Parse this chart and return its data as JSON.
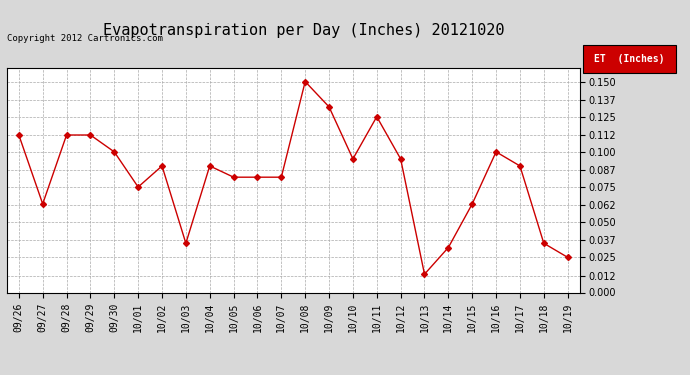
{
  "title": "Evapotranspiration per Day (Inches) 20121020",
  "copyright": "Copyright 2012 Cartronics.com",
  "legend_label": "ET  (Inches)",
  "x_labels": [
    "09/26",
    "09/27",
    "09/28",
    "09/29",
    "09/30",
    "10/01",
    "10/02",
    "10/03",
    "10/04",
    "10/05",
    "10/06",
    "10/07",
    "10/08",
    "10/09",
    "10/10",
    "10/11",
    "10/12",
    "10/13",
    "10/14",
    "10/15",
    "10/16",
    "10/17",
    "10/18",
    "10/19"
  ],
  "y_values": [
    0.112,
    0.063,
    0.112,
    0.112,
    0.1,
    0.075,
    0.09,
    0.035,
    0.09,
    0.082,
    0.082,
    0.082,
    0.15,
    0.132,
    0.095,
    0.125,
    0.095,
    0.013,
    0.032,
    0.063,
    0.1,
    0.09,
    0.035,
    0.025
  ],
  "line_color": "#cc0000",
  "marker": "D",
  "marker_size": 3,
  "ylim": [
    0.0,
    0.16
  ],
  "yticks": [
    0.0,
    0.012,
    0.025,
    0.037,
    0.05,
    0.062,
    0.075,
    0.087,
    0.1,
    0.112,
    0.125,
    0.137,
    0.15
  ],
  "bg_color": "#d8d8d8",
  "plot_bg_color": "#ffffff",
  "grid_color": "#aaaaaa",
  "title_fontsize": 11,
  "tick_fontsize": 7,
  "copyright_fontsize": 6.5,
  "legend_bg": "#cc0000",
  "legend_text_color": "#ffffff",
  "legend_fontsize": 7
}
